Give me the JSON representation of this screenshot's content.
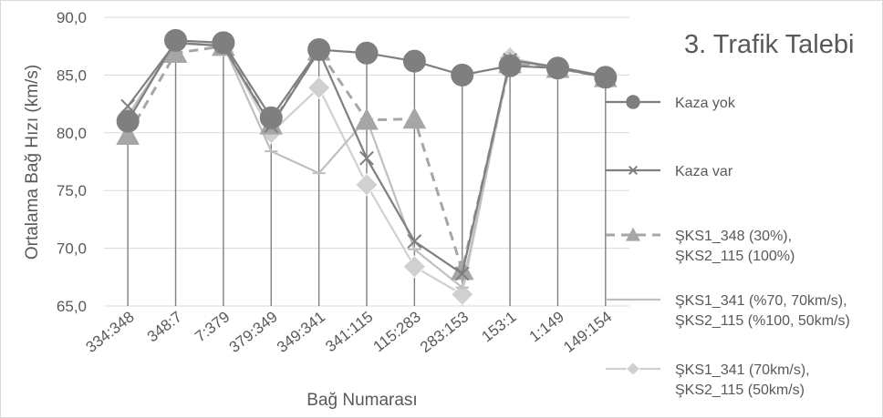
{
  "chart_data": {
    "type": "line",
    "title": "3. Trafik Talebi",
    "xlabel": "Bağ Numarası",
    "ylabel": "Ortalama Bağ Hızı (km/s)",
    "ylim": [
      65,
      90
    ],
    "yticks": [
      "65,0",
      "70,0",
      "75,0",
      "80,0",
      "85,0",
      "90,0"
    ],
    "grid": "horizontal",
    "legend_position": "right",
    "categories": [
      "334:348",
      "348:7",
      "7:379",
      "379:349",
      "349:341",
      "341:115",
      "115:283",
      "283:153",
      "153:1",
      "1:149",
      "149:154"
    ],
    "series": [
      {
        "name": "Kaza yok",
        "legend_lines": [
          "Kaza yok"
        ],
        "marker": "circle",
        "color": "#7f7f7f",
        "dash": false,
        "values": [
          81.0,
          88.0,
          87.8,
          81.3,
          87.2,
          86.9,
          86.2,
          85.0,
          85.8,
          85.6,
          84.8
        ]
      },
      {
        "name": "Kaza var",
        "legend_lines": [
          "Kaza var"
        ],
        "marker": "x",
        "color": "#7f7f7f",
        "dash": false,
        "values": [
          82.3,
          87.8,
          87.5,
          80.6,
          87.1,
          77.8,
          70.6,
          67.8,
          86.3,
          85.7,
          84.9
        ]
      },
      {
        "name": "ŞKS1_348 (30%), ŞKS2_115 (100%)",
        "legend_lines": [
          "ŞKS1_348 (30%),",
          "ŞKS2_115 (100%)"
        ],
        "marker": "triangle",
        "color": "#a6a6a6",
        "dash": true,
        "values": [
          79.8,
          86.9,
          87.5,
          80.7,
          87.1,
          81.1,
          81.2,
          68.1,
          86.0,
          85.6,
          84.8
        ]
      },
      {
        "name": "ŞKS1_341 (%70, 70km/s), ŞKS2_115 (%100, 50km/s)",
        "legend_lines": [
          "ŞKS1_341 (%70, 70km/s),",
          "ŞKS2_115 (%100, 50km/s)"
        ],
        "marker": "dash",
        "color": "#bfbfbf",
        "dash": false,
        "values": [
          81.5,
          87.8,
          87.6,
          78.4,
          76.5,
          81.2,
          69.9,
          66.6,
          86.2,
          85.7,
          84.8
        ]
      },
      {
        "name": "ŞKS1_341 (70km/s), ŞKS2_115 (50km/s)",
        "legend_lines": [
          "ŞKS1_341 (70km/s),",
          "ŞKS2_115 (50km/s)"
        ],
        "marker": "diamond",
        "color": "#d0d0d0",
        "dash": false,
        "values": [
          81.4,
          87.7,
          87.6,
          80.0,
          83.9,
          75.5,
          68.4,
          66.0,
          86.5,
          85.6,
          84.8
        ]
      }
    ]
  }
}
